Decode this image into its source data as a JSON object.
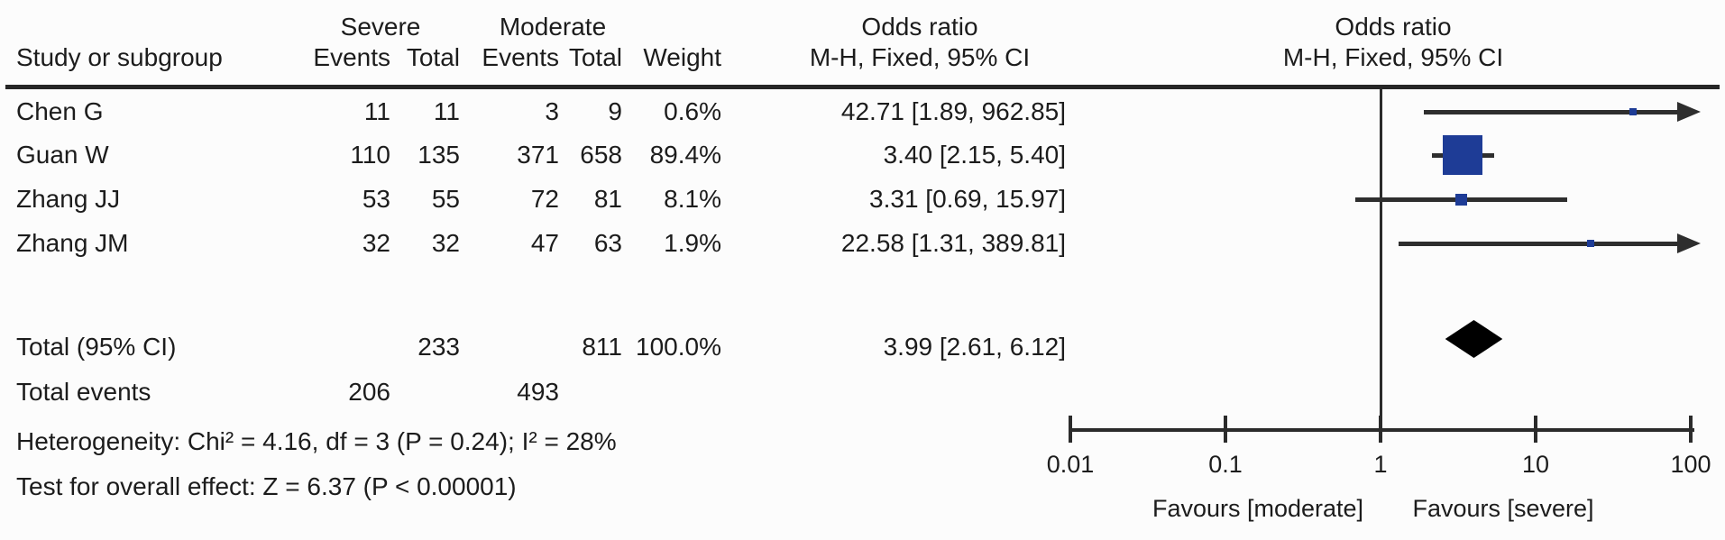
{
  "chart_data": {
    "type": "forest",
    "group_headers": {
      "group1": "Severe",
      "group2": "Moderate"
    },
    "col_headers": {
      "study": "Study or subgroup",
      "events": "Events",
      "total": "Total",
      "weight": "Weight"
    },
    "or_col_header": {
      "line1": "Odds ratio",
      "line2": "M-H, Fixed, 95% CI"
    },
    "plot_header": {
      "line1": "Odds ratio",
      "line2": "M-H, Fixed, 95% CI"
    },
    "x_axis": {
      "scale": "log",
      "ticks": [
        0.01,
        0.1,
        1,
        10,
        100
      ],
      "tick_labels": [
        "0.01",
        "0.1",
        "1",
        "10",
        "100"
      ],
      "label_left": "Favours [moderate]",
      "label_right": "Favours [severe]"
    },
    "studies": [
      {
        "name": "Chen G",
        "severe_events": 11,
        "severe_total": 11,
        "moderate_events": 3,
        "moderate_total": 9,
        "weight": "0.6%",
        "weight_value": 0.6,
        "or": 42.71,
        "ci_low": 1.89,
        "ci_high": 962.85,
        "or_text": "42.71 [1.89, 962.85]"
      },
      {
        "name": "Guan W",
        "severe_events": 110,
        "severe_total": 135,
        "moderate_events": 371,
        "moderate_total": 658,
        "weight": "89.4%",
        "weight_value": 89.4,
        "or": 3.4,
        "ci_low": 2.15,
        "ci_high": 5.4,
        "or_text": "3.40 [2.15, 5.40]"
      },
      {
        "name": "Zhang JJ",
        "severe_events": 53,
        "severe_total": 55,
        "moderate_events": 72,
        "moderate_total": 81,
        "weight": "8.1%",
        "weight_value": 8.1,
        "or": 3.31,
        "ci_low": 0.69,
        "ci_high": 15.97,
        "or_text": "3.31 [0.69, 15.97]"
      },
      {
        "name": "Zhang JM",
        "severe_events": 32,
        "severe_total": 32,
        "moderate_events": 47,
        "moderate_total": 63,
        "weight": "1.9%",
        "weight_value": 1.9,
        "or": 22.58,
        "ci_low": 1.31,
        "ci_high": 389.81,
        "or_text": "22.58 [1.31, 389.81]"
      }
    ],
    "total": {
      "label": "Total (95% CI)",
      "severe_total": 233,
      "moderate_total": 811,
      "weight": "100.0%",
      "or": 3.99,
      "ci_low": 2.61,
      "ci_high": 6.12,
      "or_text": "3.99 [2.61, 6.12]"
    },
    "total_events": {
      "label": "Total events",
      "severe": 206,
      "moderate": 493
    },
    "heterogeneity": "Heterogeneity: Chi² = 4.16, df = 3 (P = 0.24); I² = 28%",
    "overall_effect": "Test for overall effect: Z = 6.37 (P < 0.00001)",
    "colors": {
      "square": "#1e3c96",
      "line": "#2e2e2e",
      "diamond": "#000000",
      "text": "#1c1c1c"
    }
  }
}
